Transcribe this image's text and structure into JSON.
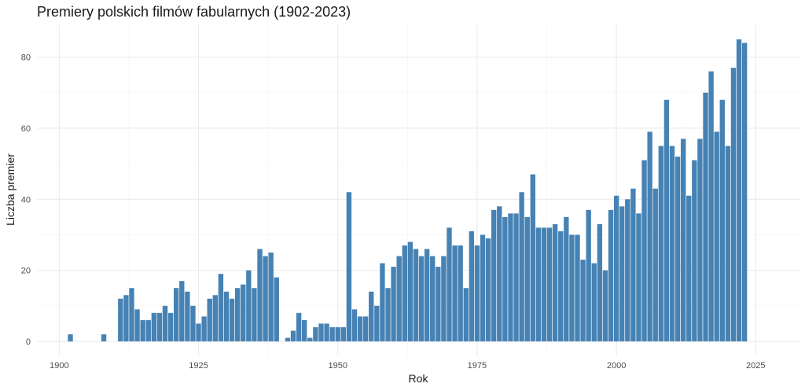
{
  "chart_data": {
    "type": "bar",
    "title": "Premiery polskich filmów fabularnych (1902-2023)",
    "xlabel": "Rok",
    "ylabel": "Liczba premier",
    "xlim": [
      1896,
      2033
    ],
    "ylim": [
      -4,
      89
    ],
    "x_ticks": [
      "1900",
      "1925",
      "1950",
      "1975",
      "2000",
      "2025"
    ],
    "y_ticks": [
      "0",
      "20",
      "40",
      "60",
      "80"
    ],
    "grid": true,
    "bar_color": "#4682b4",
    "x": [
      1902,
      1908,
      1911,
      1912,
      1913,
      1914,
      1915,
      1916,
      1917,
      1918,
      1919,
      1920,
      1921,
      1922,
      1923,
      1924,
      1925,
      1926,
      1927,
      1928,
      1929,
      1930,
      1931,
      1932,
      1933,
      1934,
      1935,
      1936,
      1937,
      1938,
      1939,
      1941,
      1942,
      1943,
      1944,
      1945,
      1946,
      1947,
      1948,
      1949,
      1950,
      1951,
      1952,
      1953,
      1954,
      1955,
      1956,
      1957,
      1958,
      1959,
      1960,
      1961,
      1962,
      1963,
      1964,
      1965,
      1966,
      1967,
      1968,
      1969,
      1970,
      1971,
      1972,
      1973,
      1974,
      1975,
      1976,
      1977,
      1978,
      1979,
      1980,
      1981,
      1982,
      1983,
      1984,
      1985,
      1986,
      1987,
      1988,
      1989,
      1990,
      1991,
      1992,
      1993,
      1994,
      1995,
      1996,
      1997,
      1998,
      1999,
      2000,
      2001,
      2002,
      2003,
      2004,
      2005,
      2006,
      2007,
      2008,
      2009,
      2010,
      2011,
      2012,
      2013,
      2014,
      2015,
      2016,
      2017,
      2018,
      2019,
      2020,
      2021,
      2022,
      2023
    ],
    "values": [
      2,
      2,
      12,
      13,
      15,
      9,
      6,
      6,
      8,
      8,
      10,
      8,
      15,
      17,
      14,
      10,
      5,
      7,
      12,
      13,
      19,
      14,
      12,
      15,
      16,
      20,
      15,
      26,
      24,
      25,
      18,
      1,
      3,
      8,
      6,
      1,
      4,
      5,
      5,
      4,
      4,
      4,
      42,
      9,
      7,
      7,
      14,
      10,
      22,
      15,
      21,
      24,
      27,
      28,
      26,
      24,
      26,
      24,
      21,
      24,
      32,
      27,
      27,
      15,
      31,
      27,
      30,
      29,
      37,
      38,
      35,
      36,
      36,
      42,
      35,
      47,
      32,
      32,
      32,
      33,
      31,
      35,
      30,
      30,
      23,
      37,
      22,
      33,
      20,
      37,
      41,
      38,
      40,
      43,
      36,
      51,
      59,
      43,
      55,
      68,
      55,
      52,
      57,
      41,
      51,
      57,
      70,
      76,
      59,
      68,
      55,
      77,
      85,
      84
    ]
  }
}
